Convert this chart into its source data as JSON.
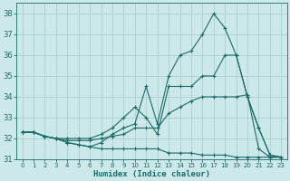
{
  "xlabel": "Humidex (Indice chaleur)",
  "bg_color": "#cce8e8",
  "grid_color": "#aacfcf",
  "line_color": "#1a6b6b",
  "xlim": [
    -0.5,
    23.5
  ],
  "ylim": [
    31,
    38.5
  ],
  "yticks": [
    31,
    32,
    33,
    34,
    35,
    36,
    37,
    38
  ],
  "xticks": [
    0,
    1,
    2,
    3,
    4,
    5,
    6,
    7,
    8,
    9,
    10,
    11,
    12,
    13,
    14,
    15,
    16,
    17,
    18,
    19,
    20,
    21,
    22,
    23
  ],
  "line1_x": [
    0,
    1,
    2,
    3,
    4,
    5,
    6,
    7,
    8,
    9,
    10,
    11,
    12,
    13,
    14,
    15,
    16,
    17,
    18,
    19,
    20,
    21,
    22,
    23
  ],
  "line1_y": [
    32.3,
    32.3,
    32.1,
    32.0,
    31.8,
    31.7,
    31.6,
    31.5,
    31.5,
    31.5,
    31.5,
    31.5,
    31.5,
    31.3,
    31.3,
    31.3,
    31.2,
    31.2,
    31.2,
    31.1,
    31.1,
    31.1,
    31.1,
    31.1
  ],
  "line2_x": [
    0,
    1,
    2,
    3,
    4,
    5,
    6,
    7,
    8,
    9,
    10,
    11,
    12,
    13,
    14,
    15,
    16,
    17,
    18,
    19,
    20,
    21,
    22,
    23
  ],
  "line2_y": [
    32.3,
    32.3,
    32.1,
    32.0,
    31.9,
    31.9,
    31.9,
    32.0,
    32.1,
    32.2,
    32.5,
    32.5,
    32.5,
    33.2,
    33.5,
    33.8,
    34.0,
    34.0,
    34.0,
    34.0,
    34.1,
    31.5,
    31.1,
    31.1
  ],
  "line3_x": [
    0,
    1,
    2,
    3,
    4,
    5,
    6,
    7,
    8,
    9,
    10,
    11,
    12,
    13,
    14,
    15,
    16,
    17,
    18,
    19,
    20,
    21,
    22,
    23
  ],
  "line3_y": [
    32.3,
    32.3,
    32.1,
    32.0,
    32.0,
    32.0,
    32.0,
    32.2,
    32.5,
    33.0,
    33.5,
    33.0,
    32.2,
    34.5,
    34.5,
    34.5,
    35.0,
    35.0,
    36.0,
    36.0,
    34.0,
    32.5,
    31.2,
    31.1
  ],
  "line4_x": [
    0,
    1,
    2,
    3,
    4,
    5,
    6,
    7,
    8,
    9,
    10,
    11,
    12,
    13,
    14,
    15,
    16,
    17,
    18,
    19,
    20,
    21,
    22,
    23
  ],
  "line4_y": [
    32.3,
    32.3,
    32.1,
    32.0,
    31.8,
    31.7,
    31.6,
    31.8,
    32.2,
    32.5,
    32.7,
    34.5,
    32.7,
    35.0,
    36.0,
    36.2,
    37.0,
    38.0,
    37.3,
    36.0,
    34.0,
    32.5,
    31.2,
    31.1
  ]
}
